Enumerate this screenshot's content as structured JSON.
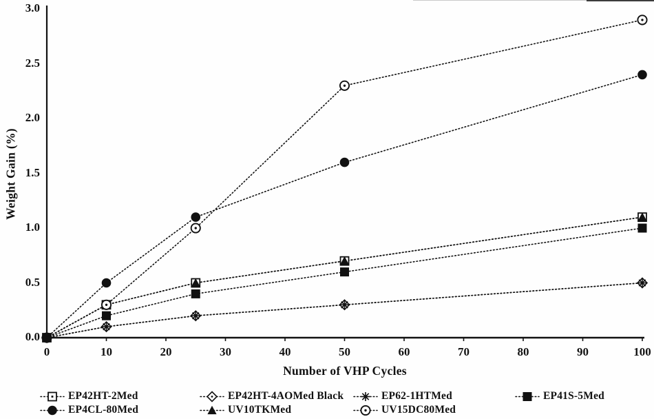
{
  "figure": {
    "background": "#fefefe",
    "ink_color": "#111111"
  },
  "chart_data": {
    "type": "line",
    "title": "",
    "xlabel": "Number of VHP Cycles",
    "ylabel": "Weight Gain (%)",
    "line_style": "dotted",
    "grid": false,
    "legend_position": "bottom",
    "xlim": [
      0,
      100
    ],
    "ylim": [
      0,
      3.0
    ],
    "xticks": [
      0,
      10,
      20,
      30,
      40,
      50,
      60,
      70,
      80,
      90,
      100
    ],
    "ytick_labels": [
      "0.0",
      "0.5",
      "1.0",
      "1.5",
      "2.0",
      "2.5",
      "3.0"
    ],
    "x": [
      0,
      10,
      25,
      50,
      100
    ],
    "series": [
      {
        "name": "EP42HT-2Med",
        "marker": "open-square",
        "values": [
          0,
          0.3,
          0.5,
          0.7,
          1.1
        ]
      },
      {
        "name": "EP42HT-4AOMed Black",
        "marker": "open-diamond",
        "values": [
          0,
          0.1,
          0.2,
          0.3,
          0.5
        ]
      },
      {
        "name": "EP62-1HTMed",
        "marker": "asterisk",
        "values": [
          0,
          0.1,
          0.2,
          0.3,
          0.5
        ]
      },
      {
        "name": "EP41S-5Med",
        "marker": "filled-square",
        "values": [
          0,
          0.2,
          0.4,
          0.6,
          1.0
        ]
      },
      {
        "name": "EP4CL-80Med",
        "marker": "filled-circle",
        "values": [
          0,
          0.5,
          1.1,
          1.6,
          2.4
        ]
      },
      {
        "name": "UV10TKMed",
        "marker": "filled-triangle",
        "values": [
          0,
          0.3,
          0.5,
          0.7,
          1.1
        ]
      },
      {
        "name": "UV15DC80Med",
        "marker": "open-circle",
        "values": [
          0,
          0.3,
          1.0,
          2.3,
          2.9
        ]
      }
    ],
    "legend_row_order": [
      [
        "EP42HT-2Med",
        "EP42HT-4AOMed Black",
        "EP62-1HTMed",
        "EP41S-5Med"
      ],
      [
        "EP4CL-80Med",
        "UV10TKMed",
        "UV15DC80Med"
      ]
    ]
  }
}
